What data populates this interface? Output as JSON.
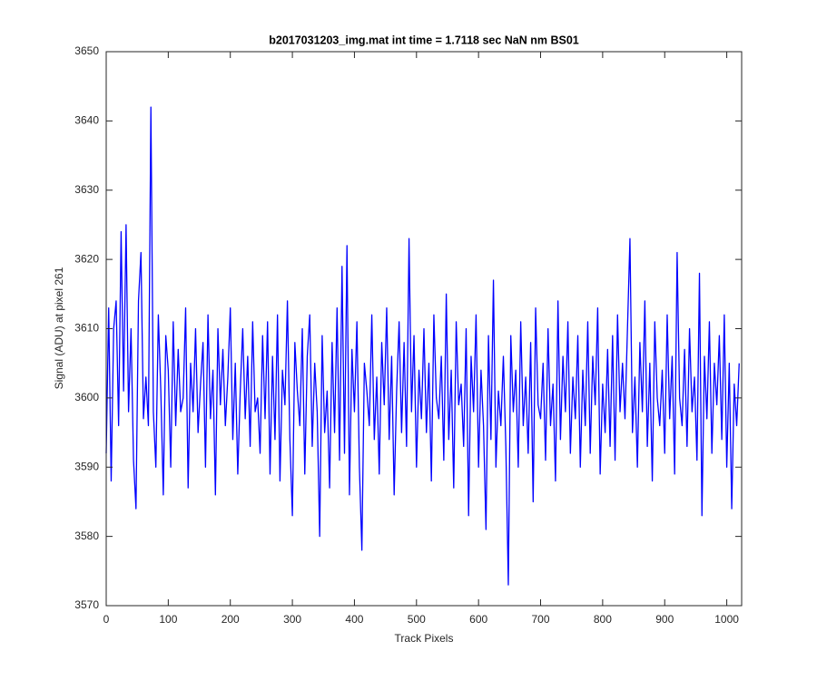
{
  "chart_data": {
    "type": "line",
    "title": "b2017031203_img.mat int time = 1.7118 sec  NaN nm BS01",
    "x_label": "Track Pixels",
    "y_label": "Signal (ADU) at pixel 261",
    "color": "#0000ff",
    "xlim": [
      0,
      1024
    ],
    "ylim": [
      3570,
      3650
    ],
    "xticks": [
      0,
      100,
      200,
      300,
      400,
      500,
      600,
      700,
      800,
      900,
      1000
    ],
    "yticks": [
      3570,
      3580,
      3590,
      3600,
      3610,
      3620,
      3630,
      3640,
      3650
    ],
    "x": [
      0,
      4,
      8,
      12,
      16,
      20,
      24,
      28,
      32,
      36,
      40,
      44,
      48,
      52,
      56,
      60,
      64,
      68,
      72,
      76,
      80,
      84,
      88,
      92,
      96,
      100,
      104,
      108,
      112,
      116,
      120,
      124,
      128,
      132,
      136,
      140,
      144,
      148,
      152,
      156,
      160,
      164,
      168,
      172,
      176,
      180,
      184,
      188,
      192,
      196,
      200,
      204,
      208,
      212,
      216,
      220,
      224,
      228,
      232,
      236,
      240,
      244,
      248,
      252,
      256,
      260,
      264,
      268,
      272,
      276,
      280,
      284,
      288,
      292,
      296,
      300,
      304,
      308,
      312,
      316,
      320,
      324,
      328,
      332,
      336,
      340,
      344,
      348,
      352,
      356,
      360,
      364,
      368,
      372,
      376,
      380,
      384,
      388,
      392,
      396,
      400,
      404,
      408,
      412,
      416,
      420,
      424,
      428,
      432,
      436,
      440,
      444,
      448,
      452,
      456,
      460,
      464,
      468,
      472,
      476,
      480,
      484,
      488,
      492,
      496,
      500,
      504,
      508,
      512,
      516,
      520,
      524,
      528,
      532,
      536,
      540,
      544,
      548,
      552,
      556,
      560,
      564,
      568,
      572,
      576,
      580,
      584,
      588,
      592,
      596,
      600,
      604,
      608,
      612,
      616,
      620,
      624,
      628,
      632,
      636,
      640,
      644,
      648,
      652,
      656,
      660,
      664,
      668,
      672,
      676,
      680,
      684,
      688,
      692,
      696,
      700,
      704,
      708,
      712,
      716,
      720,
      724,
      728,
      732,
      736,
      740,
      744,
      748,
      752,
      756,
      760,
      764,
      768,
      772,
      776,
      780,
      784,
      788,
      792,
      796,
      800,
      804,
      808,
      812,
      816,
      820,
      824,
      828,
      832,
      836,
      840,
      844,
      848,
      852,
      856,
      860,
      864,
      868,
      872,
      876,
      880,
      884,
      888,
      892,
      896,
      900,
      904,
      908,
      912,
      916,
      920,
      924,
      928,
      932,
      936,
      940,
      944,
      948,
      952,
      956,
      960,
      964,
      968,
      972,
      976,
      980,
      984,
      988,
      992,
      996,
      1000,
      1004,
      1008,
      1012,
      1016,
      1020
    ],
    "values": [
      3592,
      3613,
      3588,
      3610,
      3614,
      3596,
      3624,
      3601,
      3625,
      3598,
      3610,
      3591,
      3584,
      3614,
      3621,
      3597,
      3603,
      3596,
      3642,
      3598,
      3590,
      3612,
      3601,
      3586,
      3609,
      3604,
      3590,
      3611,
      3596,
      3607,
      3598,
      3600,
      3613,
      3587,
      3605,
      3598,
      3610,
      3595,
      3602,
      3608,
      3590,
      3612,
      3597,
      3604,
      3586,
      3610,
      3599,
      3607,
      3596,
      3603,
      3613,
      3594,
      3605,
      3589,
      3601,
      3610,
      3597,
      3606,
      3593,
      3611,
      3598,
      3600,
      3592,
      3609,
      3597,
      3611,
      3589,
      3606,
      3594,
      3612,
      3588,
      3604,
      3599,
      3614,
      3594,
      3583,
      3608,
      3601,
      3596,
      3610,
      3589,
      3606,
      3612,
      3593,
      3605,
      3598,
      3580,
      3609,
      3595,
      3601,
      3587,
      3608,
      3595,
      3613,
      3591,
      3619,
      3592,
      3622,
      3586,
      3607,
      3598,
      3611,
      3590,
      3578,
      3605,
      3601,
      3596,
      3612,
      3594,
      3603,
      3589,
      3608,
      3599,
      3613,
      3594,
      3606,
      3586,
      3601,
      3611,
      3595,
      3608,
      3593,
      3623,
      3598,
      3609,
      3590,
      3604,
      3597,
      3610,
      3595,
      3605,
      3588,
      3612,
      3600,
      3597,
      3606,
      3591,
      3615,
      3594,
      3604,
      3587,
      3611,
      3599,
      3602,
      3593,
      3610,
      3583,
      3606,
      3598,
      3612,
      3590,
      3604,
      3596,
      3581,
      3609,
      3594,
      3617,
      3590,
      3601,
      3596,
      3606,
      3593,
      3573,
      3609,
      3598,
      3604,
      3590,
      3611,
      3596,
      3603,
      3592,
      3608,
      3585,
      3613,
      3599,
      3597,
      3605,
      3591,
      3610,
      3596,
      3602,
      3588,
      3614,
      3594,
      3606,
      3598,
      3611,
      3592,
      3603,
      3597,
      3609,
      3590,
      3604,
      3596,
      3611,
      3592,
      3606,
      3599,
      3613,
      3589,
      3602,
      3595,
      3607,
      3593,
      3609,
      3591,
      3612,
      3598,
      3605,
      3597,
      3610,
      3623,
      3595,
      3603,
      3590,
      3608,
      3598,
      3614,
      3593,
      3605,
      3588,
      3611,
      3600,
      3596,
      3604,
      3592,
      3612,
      3597,
      3606,
      3589,
      3621,
      3600,
      3596,
      3607,
      3593,
      3610,
      3598,
      3603,
      3591,
      3618,
      3583,
      3606,
      3597,
      3611,
      3592,
      3605,
      3599,
      3609,
      3594,
      3612,
      3590,
      3605,
      3584,
      3602,
      3596,
      3605
    ]
  }
}
